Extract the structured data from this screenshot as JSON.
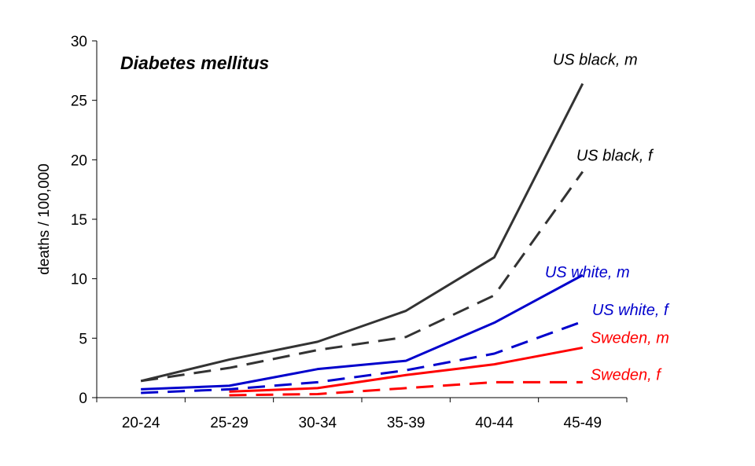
{
  "chart_data": {
    "type": "line",
    "title": "Diabetes mellitus",
    "xlabel": "",
    "ylabel": "deaths / 100,000",
    "categories": [
      "20-24",
      "25-29",
      "30-34",
      "35-39",
      "40-44",
      "45-49"
    ],
    "ylim": [
      0,
      30
    ],
    "yticks": [
      "0",
      "5",
      "10",
      "15",
      "20",
      "25",
      "30"
    ],
    "grid": false,
    "series": [
      {
        "name": "US black, m",
        "color": "#333333",
        "dash": "solid",
        "values": [
          1.4,
          3.2,
          4.7,
          7.3,
          11.8,
          26.4
        ]
      },
      {
        "name": "US black, f",
        "color": "#333333",
        "dash": "dashed",
        "values": [
          1.4,
          2.5,
          4.0,
          5.1,
          8.6,
          19.0
        ]
      },
      {
        "name": "US white, m",
        "color": "#0000cc",
        "dash": "solid",
        "values": [
          0.7,
          1.0,
          2.4,
          3.1,
          6.3,
          10.3
        ]
      },
      {
        "name": "US white, f",
        "color": "#0000cc",
        "dash": "dashed",
        "values": [
          0.4,
          0.7,
          1.3,
          2.3,
          3.7,
          6.4
        ]
      },
      {
        "name": "Sweden, m",
        "color": "#ff0000",
        "dash": "solid",
        "values": [
          null,
          0.5,
          0.8,
          1.9,
          2.8,
          4.2
        ]
      },
      {
        "name": "Sweden, f",
        "color": "#ff0000",
        "dash": "dashed",
        "values": [
          null,
          0.2,
          0.3,
          0.8,
          1.3,
          1.3
        ]
      }
    ]
  }
}
